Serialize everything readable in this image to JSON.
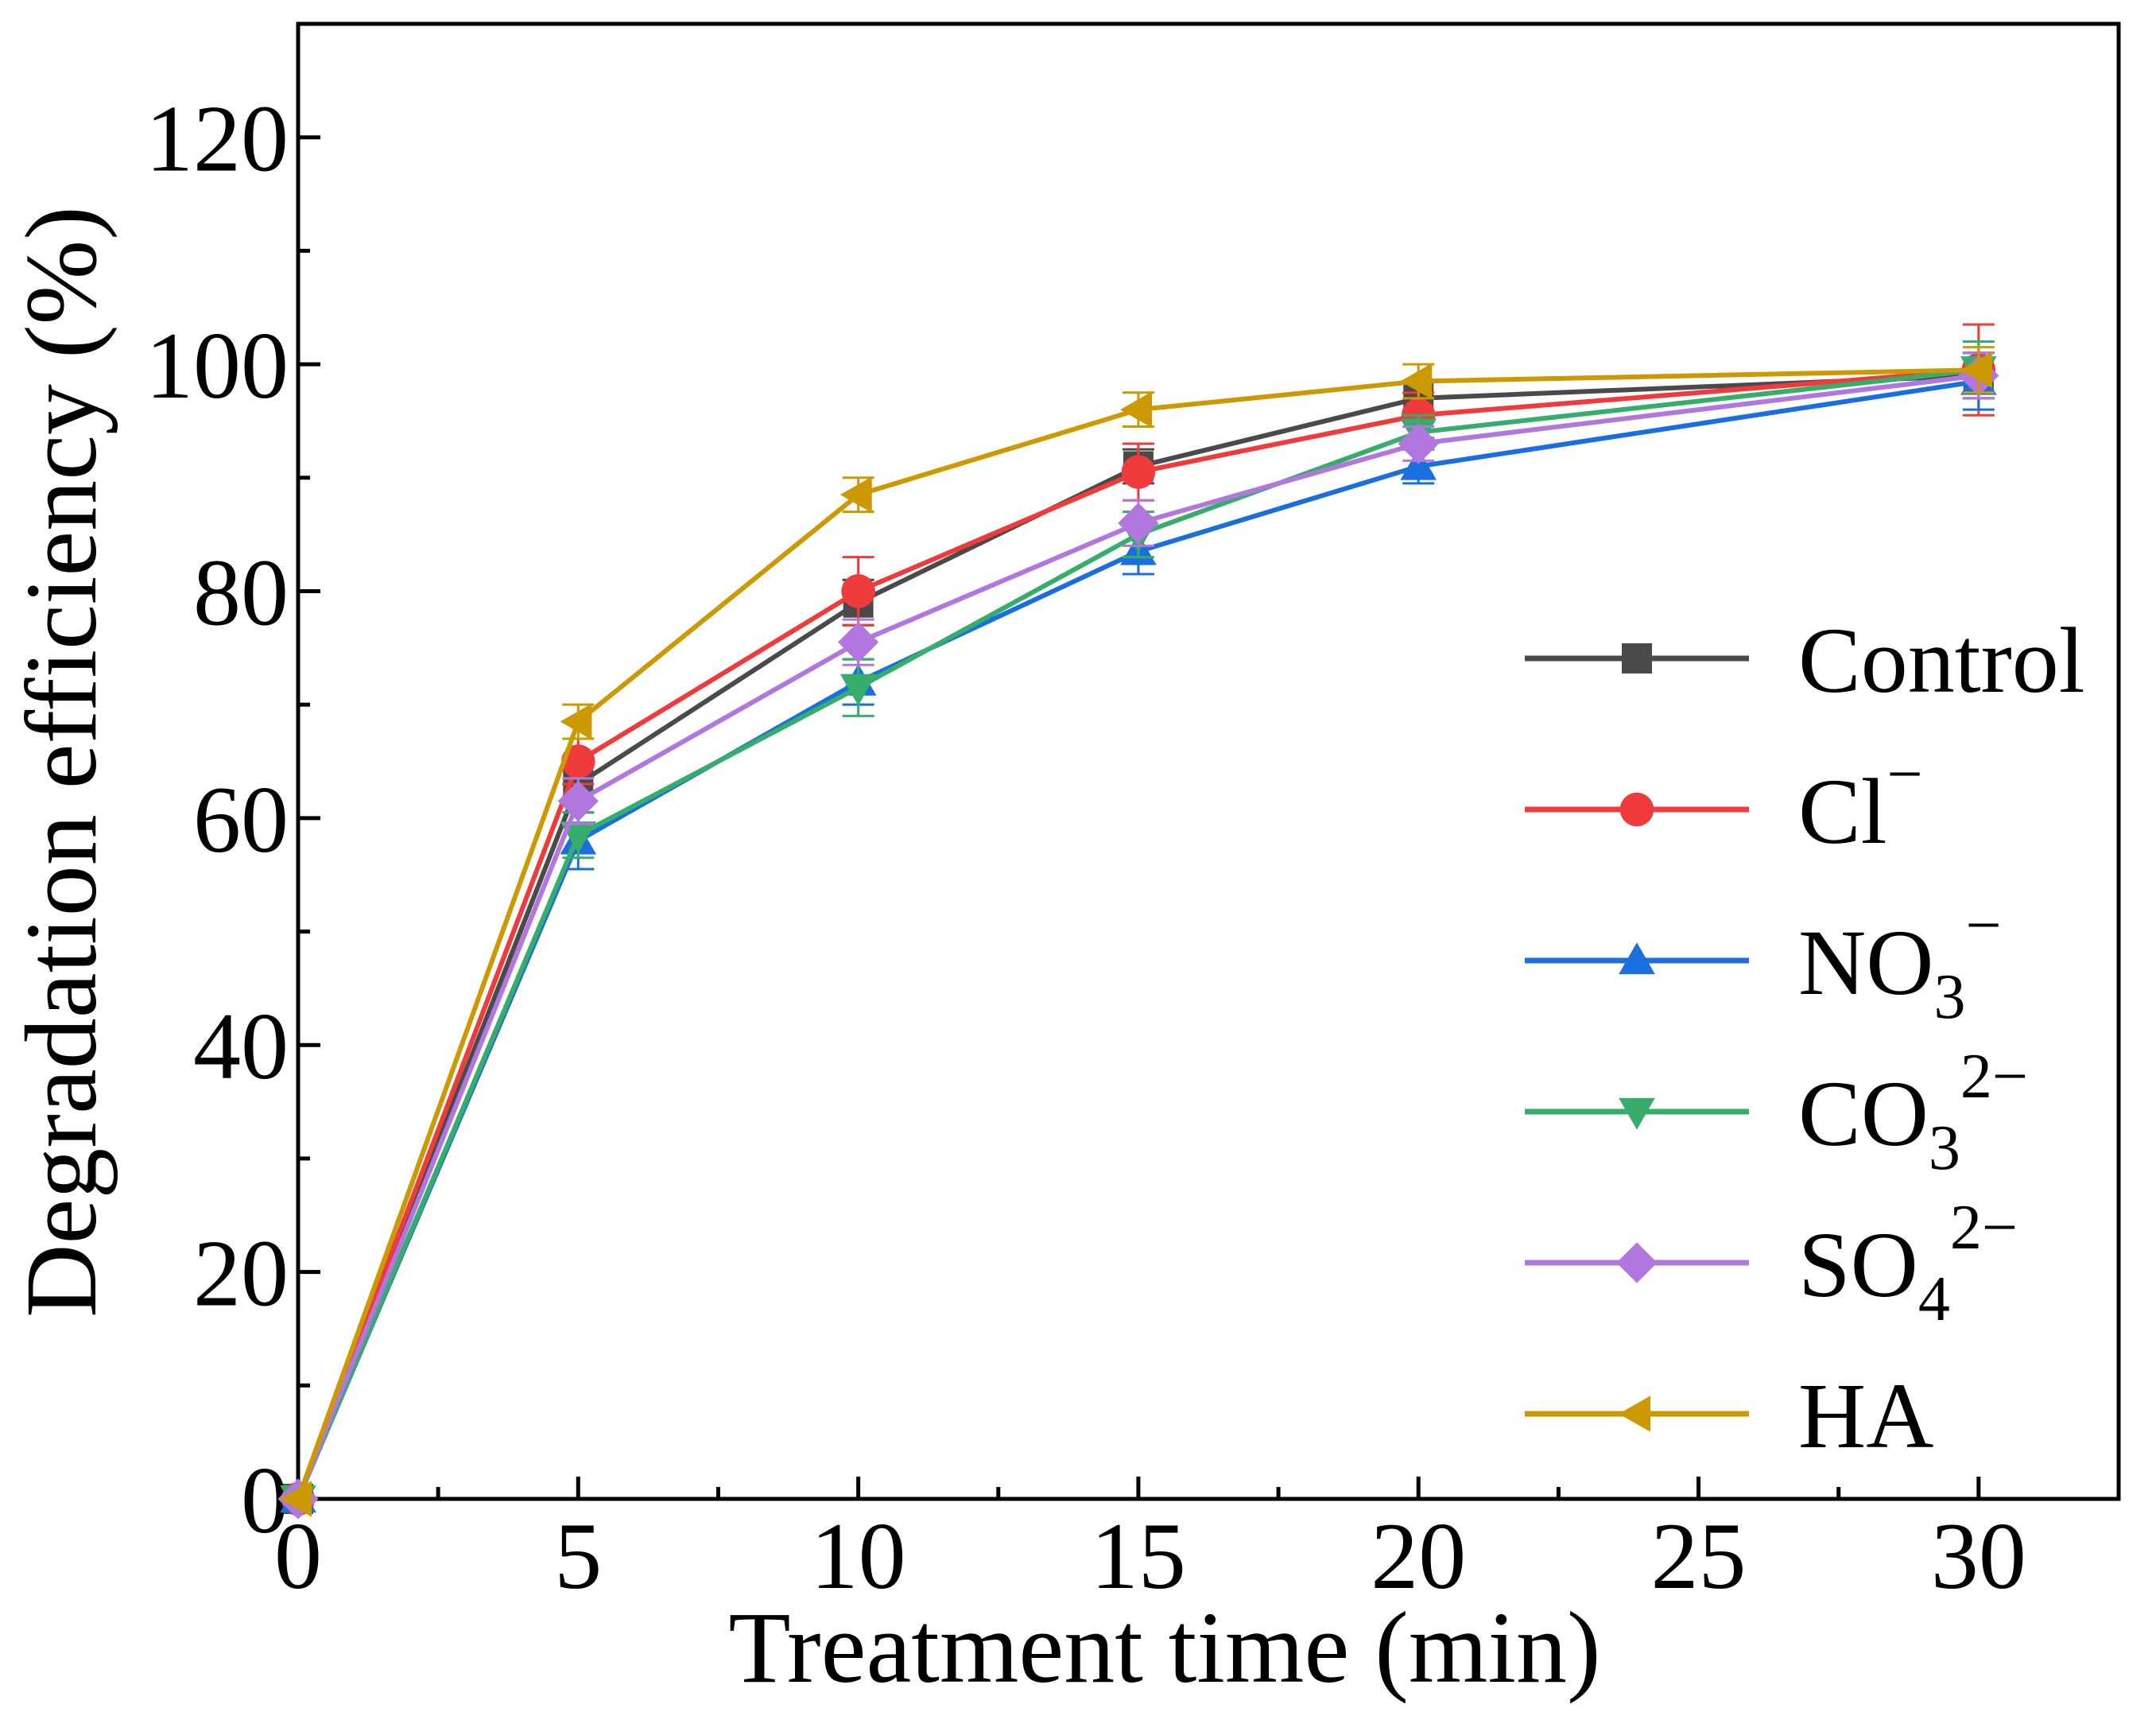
{
  "chart_data": {
    "type": "line",
    "title": "",
    "xlabel": "Treatment time (min)",
    "ylabel": "Degradation efficiency (%)",
    "xlim": [
      0,
      32.5
    ],
    "ylim": [
      0,
      130
    ],
    "x_ticks": [
      0,
      5,
      10,
      15,
      20,
      25,
      30
    ],
    "y_ticks": [
      0,
      20,
      40,
      60,
      80,
      100,
      120
    ],
    "x": [
      0,
      5,
      10,
      15,
      20,
      30
    ],
    "grid": false,
    "legend_position": "right",
    "series": [
      {
        "name": "Control",
        "label_main": "Control",
        "label_sub": "",
        "label_sup": "",
        "color": "#4a4a4a",
        "marker": "square",
        "values": [
          0,
          63,
          79,
          91,
          97,
          99
        ],
        "errors": [
          0,
          1.5,
          2.0,
          1.5,
          1.5,
          2.0
        ]
      },
      {
        "name": "Cl⁻",
        "label_main": "Cl",
        "label_sub": "",
        "label_sup": "−",
        "color": "#ef3b3b",
        "marker": "circle",
        "values": [
          0,
          65,
          80,
          90.5,
          95.5,
          99.5
        ],
        "errors": [
          0,
          2.0,
          3.0,
          2.5,
          2.0,
          4.0
        ]
      },
      {
        "name": "NO₃⁻",
        "label_main": "NO",
        "label_sub": "3",
        "label_sup": "−",
        "color": "#1a6fdf",
        "marker": "triangle-up",
        "values": [
          0,
          58,
          72,
          83.5,
          91,
          98.5
        ],
        "errors": [
          0,
          2.5,
          2.0,
          2.0,
          1.5,
          2.5
        ]
      },
      {
        "name": "CO₃²⁻",
        "label_main": "CO",
        "label_sub": "3",
        "label_sup": "2−",
        "color": "#37ad6b",
        "marker": "triangle-down",
        "values": [
          0,
          58.5,
          71.5,
          85,
          94,
          99.5
        ],
        "errors": [
          0,
          2.0,
          2.5,
          2.0,
          1.5,
          2.5
        ]
      },
      {
        "name": "SO₄²⁻",
        "label_main": "SO",
        "label_sub": "4",
        "label_sup": "2−",
        "color": "#b177de",
        "marker": "diamond",
        "values": [
          0,
          61.5,
          75.5,
          86,
          93,
          99
        ],
        "errors": [
          0,
          2.0,
          2.0,
          2.0,
          1.5,
          2.0
        ]
      },
      {
        "name": "HA",
        "label_main": "HA",
        "label_sub": "",
        "label_sup": "",
        "color": "#cc9900",
        "marker": "triangle-left",
        "values": [
          0,
          68.5,
          88.5,
          96,
          98.5,
          99.5
        ],
        "errors": [
          0,
          1.5,
          1.5,
          1.5,
          1.5,
          2.0
        ]
      }
    ]
  }
}
